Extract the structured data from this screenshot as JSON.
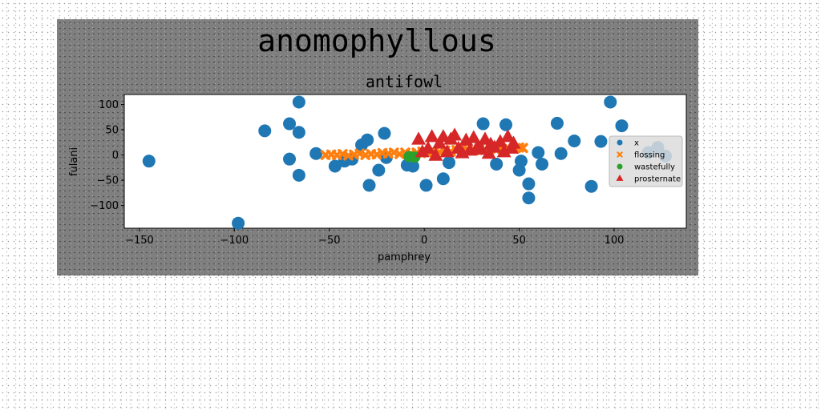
{
  "chart_data": {
    "type": "scatter",
    "suptitle": "anomophyllous",
    "title": "antifowl",
    "xlabel": "pamphrey",
    "ylabel": "fulani",
    "xlim": [
      -158,
      138
    ],
    "ylim": [
      -145,
      120
    ],
    "xticks": [
      -150,
      -100,
      -50,
      0,
      50,
      100
    ],
    "yticks": [
      -100,
      -50,
      0,
      50,
      100
    ],
    "grid": false,
    "legend_position": "center-right",
    "series": [
      {
        "name": "x",
        "marker": "circle",
        "color": "#1f77b4",
        "points": [
          [
            -145,
            -12
          ],
          [
            -98,
            -135
          ],
          [
            -84,
            48
          ],
          [
            -71,
            62
          ],
          [
            -71,
            -8
          ],
          [
            -66,
            105
          ],
          [
            -66,
            45
          ],
          [
            -66,
            -40
          ],
          [
            -57,
            3
          ],
          [
            -47,
            -22
          ],
          [
            -42,
            -12
          ],
          [
            -38,
            -8
          ],
          [
            -33,
            20
          ],
          [
            -30,
            30
          ],
          [
            -29,
            -60
          ],
          [
            -24,
            -30
          ],
          [
            -21,
            43
          ],
          [
            -20,
            -5
          ],
          [
            -9,
            -20
          ],
          [
            -6,
            -22
          ],
          [
            1,
            -60
          ],
          [
            10,
            -47
          ],
          [
            13,
            -15
          ],
          [
            31,
            62
          ],
          [
            38,
            -18
          ],
          [
            43,
            60
          ],
          [
            50,
            -30
          ],
          [
            51,
            -12
          ],
          [
            55,
            -85
          ],
          [
            55,
            -57
          ],
          [
            60,
            5
          ],
          [
            62,
            -18
          ],
          [
            70,
            63
          ],
          [
            72,
            3
          ],
          [
            79,
            28
          ],
          [
            88,
            -62
          ],
          [
            93,
            27
          ],
          [
            98,
            105
          ],
          [
            104,
            58
          ],
          [
            118,
            5
          ],
          [
            123,
            15
          ],
          [
            127,
            -2
          ]
        ]
      },
      {
        "name": "flossing",
        "marker": "x",
        "color": "#ff7f0e",
        "points": [
          [
            -52,
            0
          ],
          [
            -49,
            1
          ],
          [
            -46,
            0
          ],
          [
            -43,
            2
          ],
          [
            -40,
            -1
          ],
          [
            -37,
            1
          ],
          [
            -34,
            3
          ],
          [
            -31,
            0
          ],
          [
            -28,
            2
          ],
          [
            -25,
            1
          ],
          [
            -22,
            4
          ],
          [
            -19,
            3
          ],
          [
            -16,
            5
          ],
          [
            -13,
            2
          ],
          [
            -10,
            5
          ],
          [
            -7,
            3
          ],
          [
            -4,
            5
          ],
          [
            -1,
            7
          ],
          [
            2,
            4
          ],
          [
            5,
            8
          ],
          [
            8,
            6
          ],
          [
            11,
            9
          ],
          [
            14,
            7
          ],
          [
            17,
            10
          ],
          [
            20,
            8
          ],
          [
            23,
            11
          ],
          [
            26,
            9
          ],
          [
            29,
            12
          ],
          [
            32,
            10
          ],
          [
            35,
            13
          ],
          [
            38,
            11
          ],
          [
            41,
            12
          ],
          [
            44,
            14
          ],
          [
            47,
            13
          ],
          [
            50,
            15
          ],
          [
            52,
            14
          ]
        ]
      },
      {
        "name": "wastefully",
        "marker": "circle",
        "color": "#2ca02c",
        "points": [
          [
            -8,
            -3
          ],
          [
            -5,
            -4
          ]
        ]
      },
      {
        "name": "prosternate",
        "marker": "triangle",
        "color": "#d62728",
        "points": [
          [
            -3,
            30
          ],
          [
            -1,
            5
          ],
          [
            2,
            12
          ],
          [
            4,
            35
          ],
          [
            6,
            -2
          ],
          [
            8,
            22
          ],
          [
            10,
            35
          ],
          [
            12,
            5
          ],
          [
            14,
            30
          ],
          [
            16,
            38
          ],
          [
            18,
            12
          ],
          [
            20,
            3
          ],
          [
            22,
            28
          ],
          [
            24,
            8
          ],
          [
            26,
            33
          ],
          [
            28,
            15
          ],
          [
            30,
            10
          ],
          [
            32,
            30
          ],
          [
            34,
            2
          ],
          [
            35,
            20
          ],
          [
            37,
            14
          ],
          [
            40,
            25
          ],
          [
            42,
            5
          ],
          [
            44,
            35
          ],
          [
            46,
            12
          ],
          [
            47,
            22
          ]
        ]
      }
    ]
  }
}
